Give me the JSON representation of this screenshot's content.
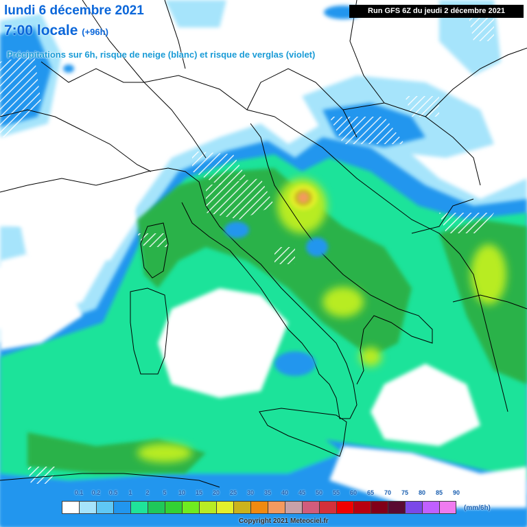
{
  "header": {
    "date_line": "lundi 6 décembre 2021",
    "time_line": "7:00 locale",
    "lead_time": "(+96h)",
    "subtitle": "Précipitations sur 6h, risque de neige (blanc) et risque de verglas (violet)",
    "run_info": "Run GFS 6Z du jeudi 2 décembre 2021"
  },
  "legend": {
    "units": "(mm/6h)",
    "ticks": [
      "0.1",
      "0.2",
      "0.5",
      "1",
      "2",
      "5",
      "10",
      "15",
      "20",
      "25",
      "30",
      "35",
      "40",
      "45",
      "50",
      "55",
      "60",
      "65",
      "70",
      "75",
      "80",
      "85",
      "90"
    ],
    "colors": [
      "#ffffff",
      "#a6e4fb",
      "#5fc8f5",
      "#2196ee",
      "#1fe39a",
      "#1fc85a",
      "#33d134",
      "#6fec20",
      "#b8ec24",
      "#e4f02c",
      "#cbb31c",
      "#f08a10",
      "#f59a5f",
      "#c8a1a8",
      "#d25c7c",
      "#d4303a",
      "#f00000",
      "#b80010",
      "#820018",
      "#5a0a32",
      "#7a49e8",
      "#c060ff",
      "#f07bef"
    ]
  },
  "copyright": "Copyright 2021 Meteociel.fr",
  "map_colors": {
    "sea": "#ffffff",
    "precip_light": "#a6e4fb",
    "precip_mid": "#2196ee",
    "precip_green": "#1fe39a",
    "precip_dark_green": "#2ab24a",
    "precip_lime": "#b8ec24",
    "precip_peak": "#f08a10",
    "border": "#000000",
    "snow_hatch": "#ffffff"
  }
}
